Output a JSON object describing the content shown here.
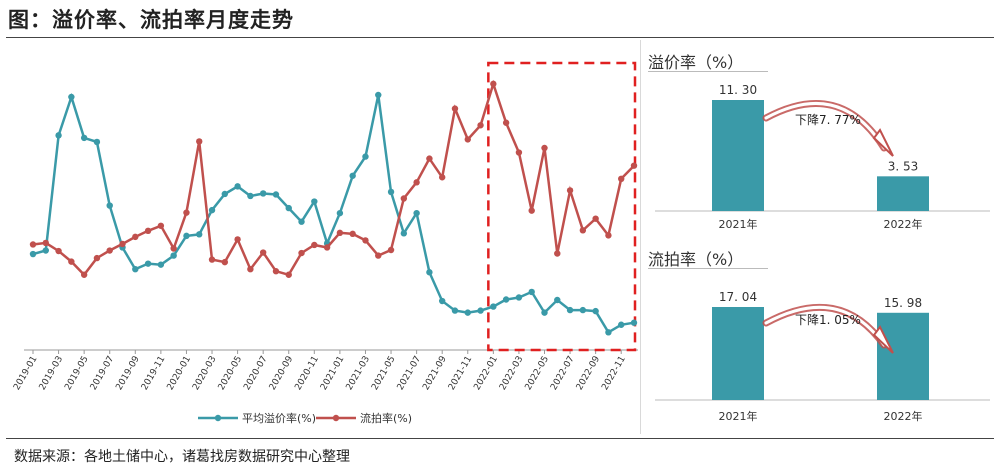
{
  "title": "图：溢价率、流拍率月度走势",
  "source": "数据来源：各地土储中心，诸葛找房数据研究中心整理",
  "colors": {
    "premium": "#3a9aa8",
    "unsold": "#c0504d",
    "highlight": "#e02020",
    "bar": "#3a9aa8",
    "arrow": "#c0504d"
  },
  "chart_data": [
    {
      "type": "line",
      "x": [
        "2019-01",
        "2019-02",
        "2019-03",
        "2019-04",
        "2019-05",
        "2019-06",
        "2019-07",
        "2019-08",
        "2019-09",
        "2019-10",
        "2019-11",
        "2019-12",
        "2020-01",
        "2020-02",
        "2020-03",
        "2020-04",
        "2020-05",
        "2020-06",
        "2020-07",
        "2020-08",
        "2020-09",
        "2020-10",
        "2020-11",
        "2020-12",
        "2021-01",
        "2021-02",
        "2021-03",
        "2021-04",
        "2021-05",
        "2021-06",
        "2021-07",
        "2021-08",
        "2021-09",
        "2021-10",
        "2021-11",
        "2021-12",
        "2022-01",
        "2022-02",
        "2022-03",
        "2022-04",
        "2022-05",
        "2022-06",
        "2022-07",
        "2022-08",
        "2022-09",
        "2022-10",
        "2022-11",
        "2022-12"
      ],
      "tick_labels": [
        "2019-01",
        "2019-03",
        "2019-05",
        "2019-07",
        "2019-09",
        "2019-11",
        "2020-01",
        "2020-03",
        "2020-05",
        "2020-07",
        "2020-09",
        "2020-11",
        "2021-01",
        "2021-03",
        "2021-05",
        "2021-07",
        "2021-09",
        "2021-11",
        "2022-01",
        "2022-03",
        "2022-05",
        "2022-07",
        "2022-09",
        "2022-11"
      ],
      "series": [
        {
          "name": "平均溢价率(%)",
          "values": [
            19.0,
            19.7,
            42.5,
            50.1,
            42.0,
            41.2,
            28.6,
            20.3,
            16.0,
            17.1,
            16.9,
            18.7,
            22.6,
            22.9,
            27.7,
            30.9,
            32.4,
            30.5,
            31.0,
            30.8,
            28.1,
            25.4,
            29.4,
            21.1,
            27.1,
            34.5,
            38.3,
            50.5,
            31.3,
            23.1,
            27.1,
            15.4,
            9.7,
            7.8,
            7.4,
            7.8,
            8.6,
            10.0,
            10.4,
            11.5,
            7.4,
            9.9,
            7.9,
            7.9,
            7.7,
            3.5,
            5.0,
            5.4
          ]
        },
        {
          "name": "流拍率(%)",
          "values": [
            20.9,
            21.2,
            19.6,
            17.5,
            14.9,
            18.2,
            19.7,
            21.0,
            22.4,
            23.6,
            24.6,
            20.1,
            27.2,
            41.3,
            17.9,
            17.4,
            21.9,
            16.0,
            19.3,
            15.6,
            14.9,
            19.2,
            20.8,
            20.3,
            23.2,
            23.0,
            21.7,
            18.7,
            19.8,
            30.0,
            33.2,
            37.9,
            34.2,
            47.8,
            41.7,
            44.5,
            52.7,
            45.0,
            39.1,
            27.6,
            40.0,
            19.1,
            31.6,
            23.7,
            26.0,
            22.7,
            33.9,
            36.5
          ]
        }
      ],
      "highlight_range": [
        "2022-01",
        "2022-11"
      ]
    },
    {
      "type": "bar",
      "title": "溢价率（%）",
      "categories": [
        "2021年",
        "2022年"
      ],
      "values": [
        11.3,
        3.53
      ],
      "value_labels": [
        "11. 30",
        "3. 53"
      ],
      "annotation": "下降7. 77%"
    },
    {
      "type": "bar",
      "title": "流拍率（%）",
      "categories": [
        "2021年",
        "2022年"
      ],
      "values": [
        17.04,
        15.98
      ],
      "value_labels": [
        "17. 04",
        "15. 98"
      ],
      "annotation": "下降1. 05%"
    }
  ]
}
